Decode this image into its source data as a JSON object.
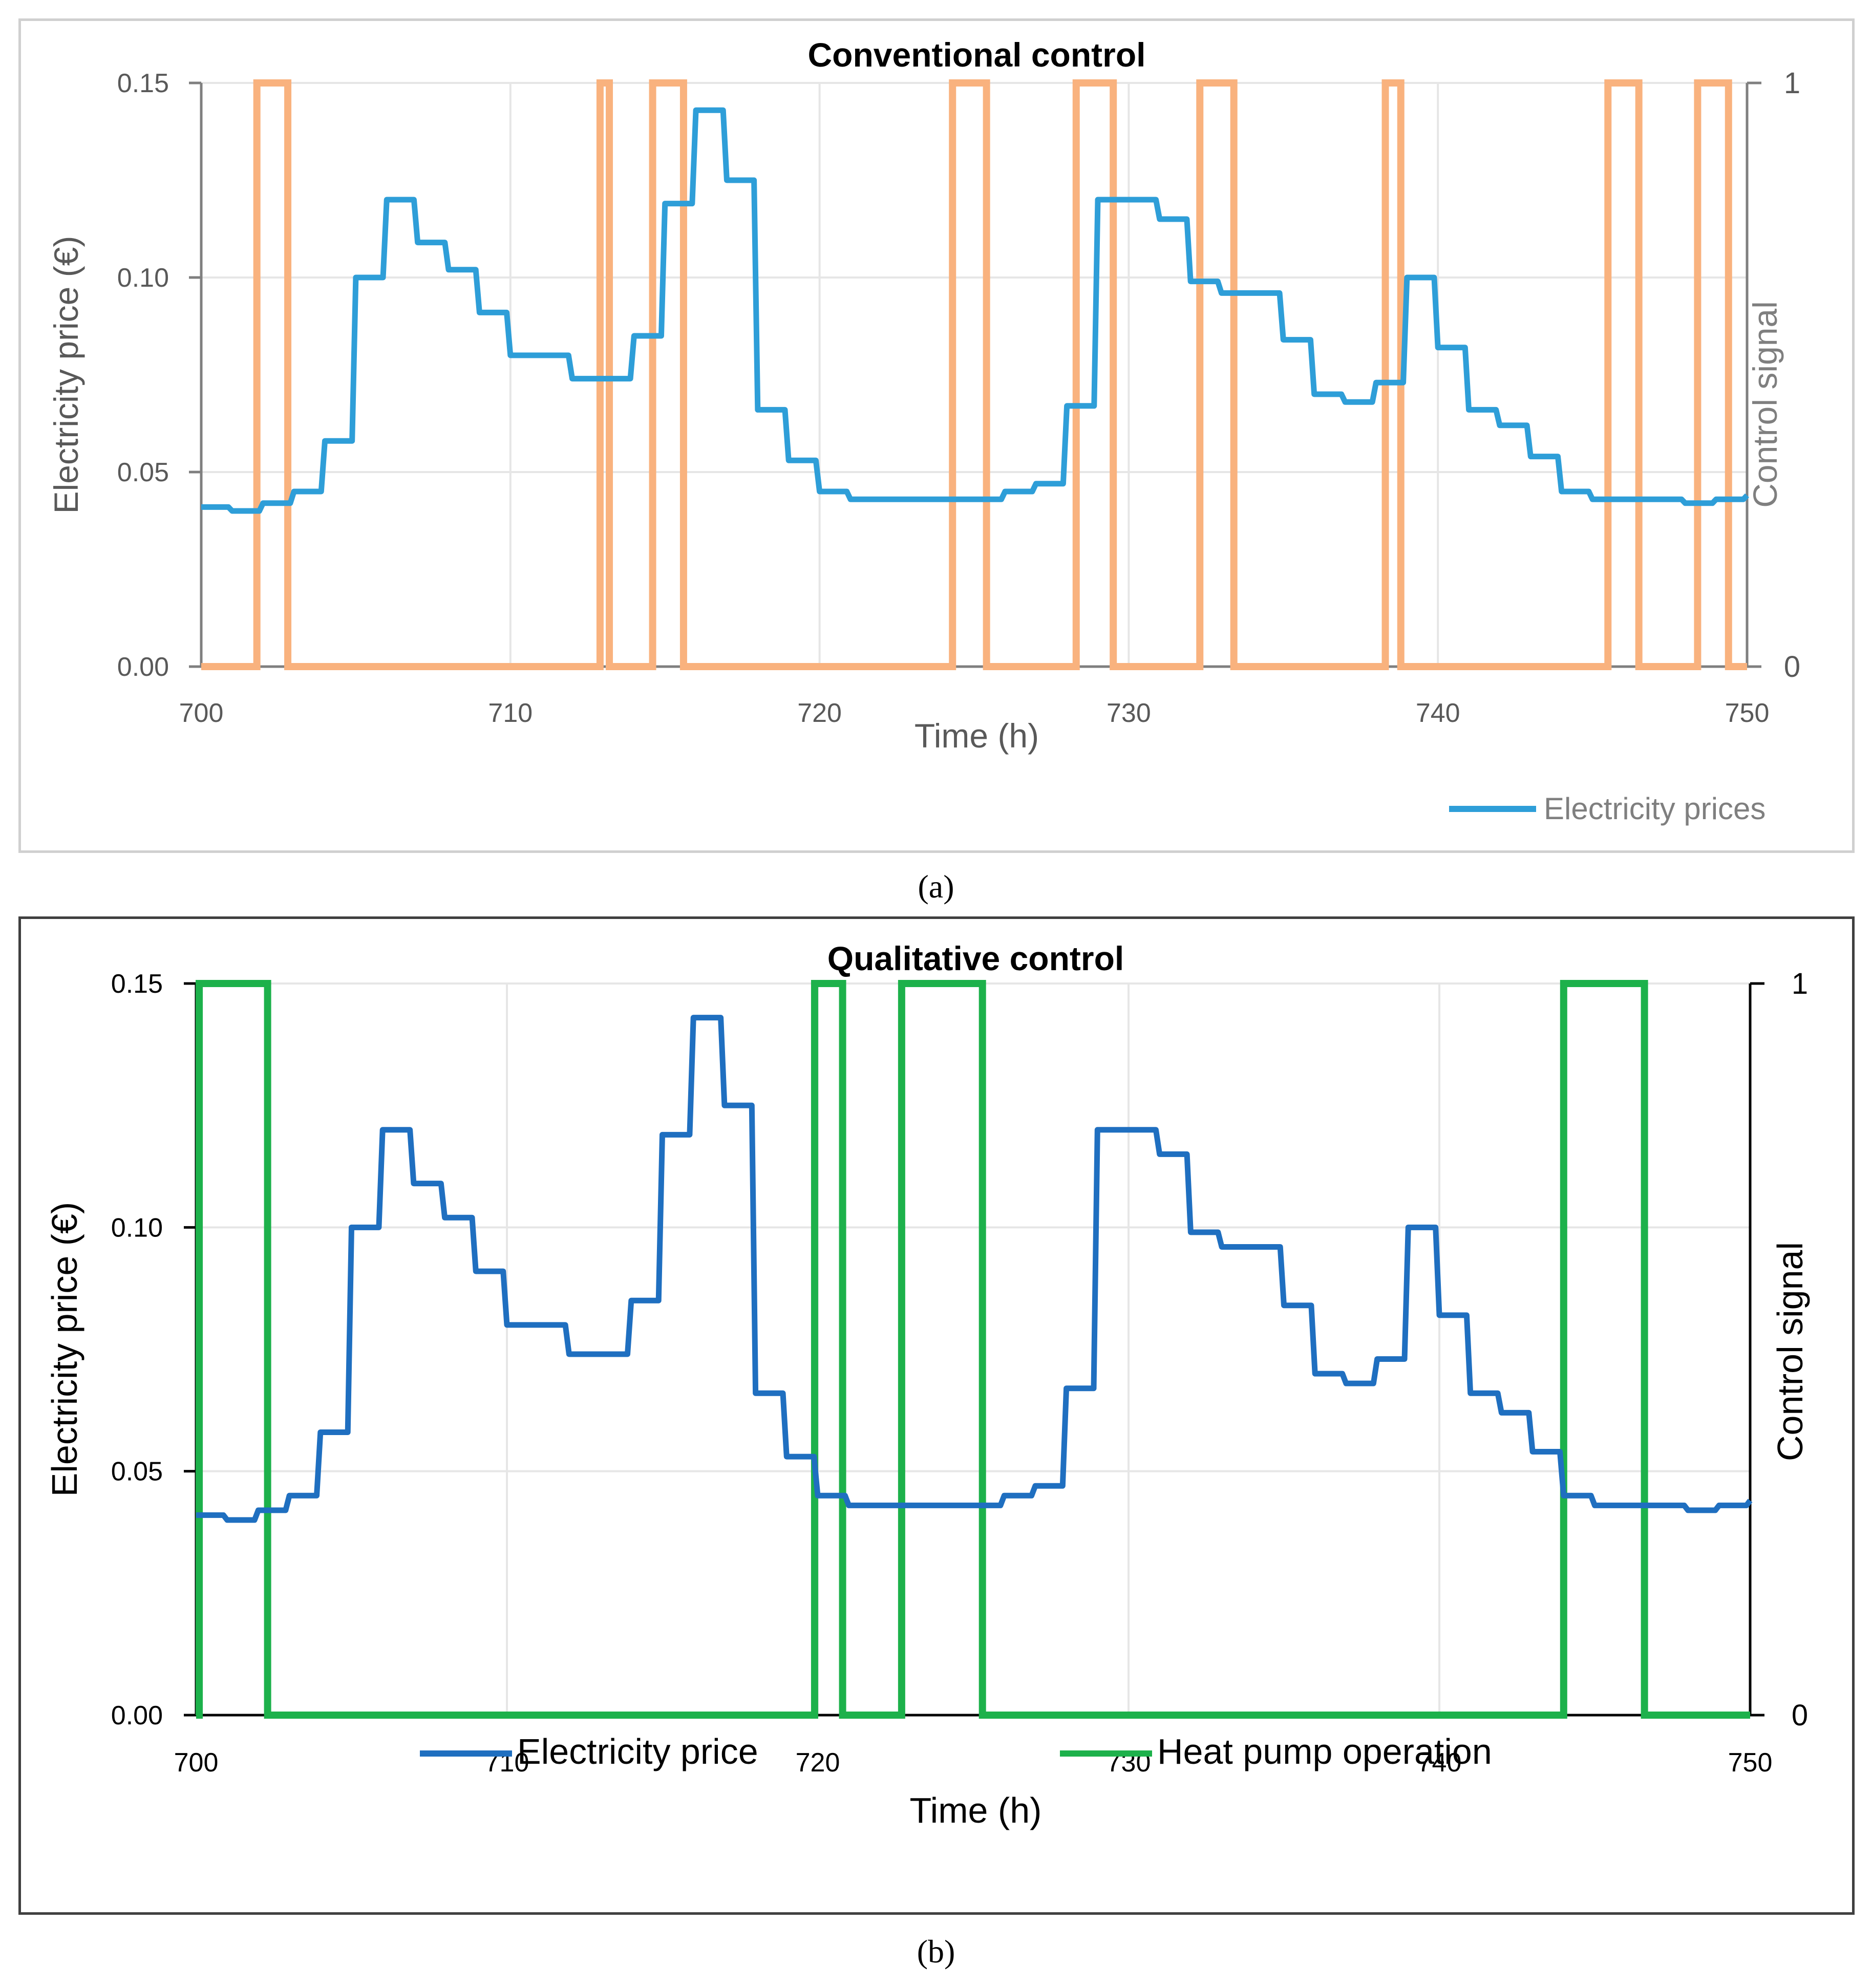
{
  "captions": {
    "a": "(a)",
    "b": "(b)"
  },
  "colors": {
    "price_a": "#2E9ED8",
    "signal_a": "#F9B27E",
    "price_b": "#1F6FC0",
    "signal_b": "#1DB14B",
    "grid": "#e6e6e6",
    "axis_a": "#7f7f7f",
    "axis_b": "#000000"
  },
  "chart_data": [
    {
      "id": "a",
      "type": "line",
      "title": "Conventional control",
      "xlabel": "Time (h)",
      "ylabel": "Electricity price (€)",
      "y2label": "Control signal",
      "xlim": [
        700,
        750
      ],
      "ylim": [
        0,
        0.15
      ],
      "y2lim": [
        0,
        1
      ],
      "xticks": [
        "700",
        "710",
        "720",
        "730",
        "740",
        "750"
      ],
      "yticks": [
        "0.00",
        "0.05",
        "0.10",
        "0.15"
      ],
      "y2ticks": [
        "0",
        "1"
      ],
      "legend": [
        "Electricity prices"
      ],
      "legend_position": "bottom-right",
      "series": [
        {
          "name": "Electricity prices",
          "axis": "left",
          "step": true,
          "x": [
            700,
            701,
            702,
            703,
            704,
            705,
            706,
            707,
            708,
            709,
            710,
            711,
            712,
            713,
            714,
            715,
            716,
            717,
            718,
            719,
            720,
            721,
            722,
            723,
            724,
            725,
            726,
            727,
            728,
            729,
            730,
            731,
            732,
            733,
            734,
            735,
            736,
            737,
            738,
            739,
            740,
            741,
            742,
            743,
            744,
            745,
            746,
            747,
            748,
            749,
            750
          ],
          "values": [
            0.041,
            0.04,
            0.042,
            0.045,
            0.058,
            0.1,
            0.12,
            0.109,
            0.102,
            0.091,
            0.08,
            0.08,
            0.074,
            0.074,
            0.085,
            0.119,
            0.143,
            0.125,
            0.066,
            0.053,
            0.045,
            0.043,
            0.043,
            0.043,
            0.043,
            0.043,
            0.045,
            0.047,
            0.067,
            0.12,
            0.12,
            0.115,
            0.099,
            0.096,
            0.096,
            0.084,
            0.07,
            0.068,
            0.073,
            0.1,
            0.082,
            0.066,
            0.062,
            0.054,
            0.045,
            0.043,
            0.043,
            0.043,
            0.042,
            0.043,
            0.044
          ]
        },
        {
          "name": "Control signal",
          "axis": "right",
          "on_intervals": [
            [
              701.8,
              702.8
            ],
            [
              712.9,
              713.2
            ],
            [
              714.6,
              715.6
            ],
            [
              724.3,
              725.4
            ],
            [
              728.3,
              729.5
            ],
            [
              732.3,
              733.4
            ],
            [
              738.3,
              738.8
            ],
            [
              745.5,
              746.5
            ],
            [
              748.4,
              749.4
            ]
          ]
        }
      ]
    },
    {
      "id": "b",
      "type": "line",
      "title": "Qualitative control",
      "xlabel": "Time (h)",
      "ylabel": "Electricity price (€)",
      "y2label": "Control signal",
      "xlim": [
        700,
        750
      ],
      "ylim": [
        0,
        0.15
      ],
      "y2lim": [
        0,
        1
      ],
      "xticks": [
        "700",
        "710",
        "720",
        "730",
        "740",
        "750"
      ],
      "yticks": [
        "0.00",
        "0.05",
        "0.10",
        "0.15"
      ],
      "y2ticks": [
        "0",
        "1"
      ],
      "legend": [
        "Electricity price",
        "Heat pump operation"
      ],
      "legend_position": "bottom",
      "series": [
        {
          "name": "Electricity price",
          "axis": "left",
          "step": true,
          "x": [
            700,
            701,
            702,
            703,
            704,
            705,
            706,
            707,
            708,
            709,
            710,
            711,
            712,
            713,
            714,
            715,
            716,
            717,
            718,
            719,
            720,
            721,
            722,
            723,
            724,
            725,
            726,
            727,
            728,
            729,
            730,
            731,
            732,
            733,
            734,
            735,
            736,
            737,
            738,
            739,
            740,
            741,
            742,
            743,
            744,
            745,
            746,
            747,
            748,
            749,
            750
          ],
          "values": [
            0.041,
            0.04,
            0.042,
            0.045,
            0.058,
            0.1,
            0.12,
            0.109,
            0.102,
            0.091,
            0.08,
            0.08,
            0.074,
            0.074,
            0.085,
            0.119,
            0.143,
            0.125,
            0.066,
            0.053,
            0.045,
            0.043,
            0.043,
            0.043,
            0.043,
            0.043,
            0.045,
            0.047,
            0.067,
            0.12,
            0.12,
            0.115,
            0.099,
            0.096,
            0.096,
            0.084,
            0.07,
            0.068,
            0.073,
            0.1,
            0.082,
            0.066,
            0.062,
            0.054,
            0.045,
            0.043,
            0.043,
            0.043,
            0.042,
            0.043,
            0.044
          ]
        },
        {
          "name": "Heat pump operation",
          "axis": "right",
          "on_intervals": [
            [
              700.1,
              702.3
            ],
            [
              719.9,
              720.8
            ],
            [
              722.7,
              725.3
            ],
            [
              744.0,
              746.6
            ]
          ]
        }
      ]
    }
  ]
}
